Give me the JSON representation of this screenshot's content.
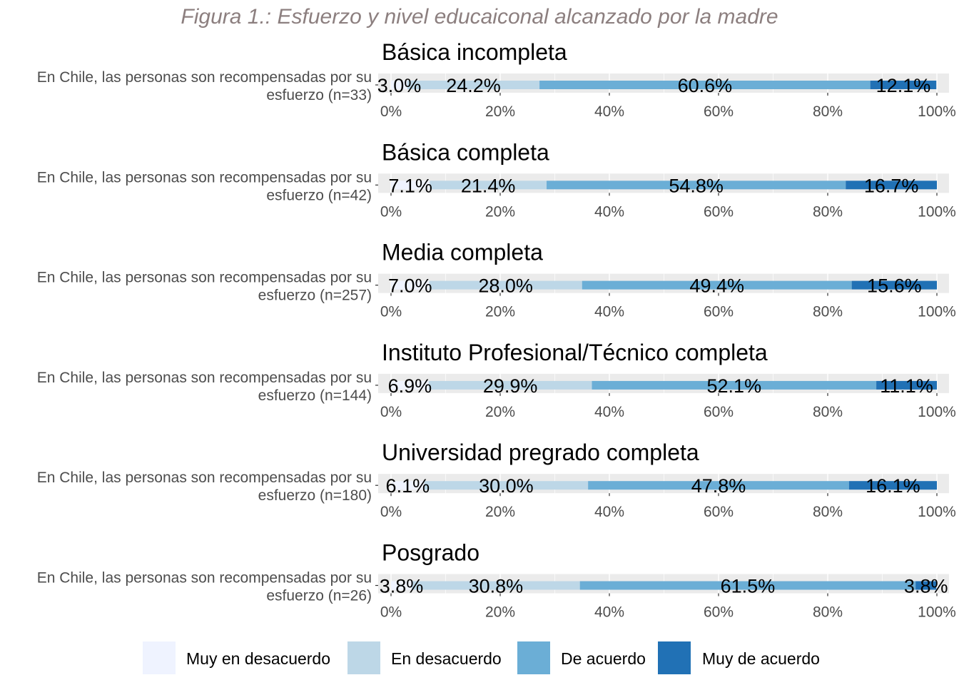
{
  "chart_data": {
    "type": "bar",
    "orientation": "horizontal-stacked-100",
    "title": "Figura 1.: Esfuerzo y nivel educaiconal alcanzado por la madre",
    "x_ticks": [
      "0%",
      "20%",
      "40%",
      "60%",
      "80%",
      "100%"
    ],
    "xlim": [
      0,
      100
    ],
    "grid": true,
    "legend_position": "bottom",
    "legend": [
      "Muy en desacuerdo",
      "En desacuerdo",
      "De acuerdo",
      "Muy de acuerdo"
    ],
    "colors": [
      "#eff3ff",
      "#bdd7e7",
      "#6baed6",
      "#2171b5"
    ],
    "facets": [
      {
        "title": "Básica incompleta",
        "ylabel": [
          "En Chile, las personas son recompensadas por su",
          "esfuerzo (n=33)"
        ],
        "values": [
          3.0,
          24.2,
          60.6,
          12.1
        ],
        "labels": [
          "3.0%",
          "24.2%",
          "60.6%",
          "12.1%"
        ]
      },
      {
        "title": "Básica completa",
        "ylabel": [
          "En Chile, las personas son recompensadas por su",
          "esfuerzo (n=42)"
        ],
        "values": [
          7.1,
          21.4,
          54.8,
          16.7
        ],
        "labels": [
          "7.1%",
          "21.4%",
          "54.8%",
          "16.7%"
        ]
      },
      {
        "title": "Media completa",
        "ylabel": [
          "En Chile, las personas son recompensadas por su",
          "esfuerzo (n=257)"
        ],
        "values": [
          7.0,
          28.0,
          49.4,
          15.6
        ],
        "labels": [
          "7.0%",
          "28.0%",
          "49.4%",
          "15.6%"
        ]
      },
      {
        "title": "Instituto Profesional/Técnico completa",
        "ylabel": [
          "En Chile, las personas son recompensadas por su",
          "esfuerzo (n=144)"
        ],
        "values": [
          6.9,
          29.9,
          52.1,
          11.1
        ],
        "labels": [
          "6.9%",
          "29.9%",
          "52.1%",
          "11.1%"
        ]
      },
      {
        "title": "Universidad pregrado completa",
        "ylabel": [
          "En Chile, las personas son recompensadas por su",
          "esfuerzo (n=180)"
        ],
        "values": [
          6.1,
          30.0,
          47.8,
          16.1
        ],
        "labels": [
          "6.1%",
          "30.0%",
          "47.8%",
          "16.1%"
        ]
      },
      {
        "title": "Posgrado",
        "ylabel": [
          "En Chile, las personas son recompensadas por su",
          "esfuerzo (n=26)"
        ],
        "values": [
          3.8,
          30.8,
          61.5,
          3.8
        ],
        "labels": [
          "3.8%",
          "30.8%",
          "61.5%",
          "3.8%"
        ]
      }
    ]
  }
}
